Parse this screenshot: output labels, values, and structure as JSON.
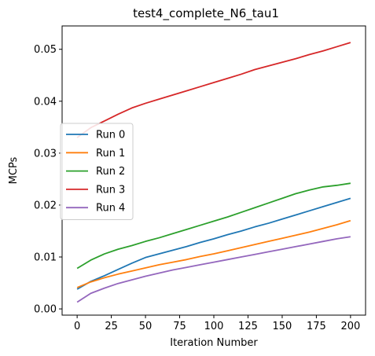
{
  "chart_data": {
    "type": "line",
    "title": "test4_complete_N6_tau1",
    "xlabel": "Iteration Number",
    "ylabel": "MCPs",
    "xlim": [
      -11,
      211
    ],
    "ylim": [
      -0.0012,
      0.0545
    ],
    "xticks": [
      0,
      25,
      50,
      75,
      100,
      125,
      150,
      175,
      200
    ],
    "xtick_labels": [
      "0",
      "25",
      "50",
      "75",
      "100",
      "125",
      "150",
      "175",
      "200"
    ],
    "yticks": [
      0.0,
      0.01,
      0.02,
      0.03,
      0.04,
      0.05
    ],
    "ytick_labels": [
      "0.00",
      "0.01",
      "0.02",
      "0.03",
      "0.04",
      "0.05"
    ],
    "grid": false,
    "legend": {
      "placement": "center-left"
    },
    "series": [
      {
        "name": "Run 0",
        "color": "#1f77b4",
        "x": [
          0,
          10,
          20,
          30,
          40,
          50,
          60,
          70,
          80,
          90,
          100,
          110,
          120,
          130,
          140,
          150,
          160,
          170,
          180,
          190,
          200
        ],
        "y": [
          0.0038,
          0.0053,
          0.0064,
          0.0076,
          0.0088,
          0.0099,
          0.0106,
          0.0113,
          0.012,
          0.0128,
          0.0135,
          0.0143,
          0.015,
          0.0158,
          0.0165,
          0.0173,
          0.0181,
          0.0189,
          0.0197,
          0.0205,
          0.0213
        ]
      },
      {
        "name": "Run 1",
        "color": "#ff7f0e",
        "x": [
          0,
          10,
          20,
          30,
          40,
          50,
          60,
          70,
          80,
          90,
          100,
          110,
          120,
          130,
          140,
          150,
          160,
          170,
          180,
          190,
          200
        ],
        "y": [
          0.0041,
          0.0052,
          0.006,
          0.0067,
          0.0073,
          0.0079,
          0.0085,
          0.009,
          0.0095,
          0.0101,
          0.0106,
          0.0112,
          0.0118,
          0.0124,
          0.013,
          0.0136,
          0.0142,
          0.0148,
          0.0155,
          0.0162,
          0.017
        ]
      },
      {
        "name": "Run 2",
        "color": "#2ca02c",
        "x": [
          0,
          10,
          20,
          30,
          40,
          50,
          60,
          70,
          80,
          90,
          100,
          110,
          120,
          130,
          140,
          150,
          160,
          170,
          180,
          190,
          200
        ],
        "y": [
          0.0078,
          0.0094,
          0.0106,
          0.0115,
          0.0122,
          0.013,
          0.0137,
          0.0145,
          0.0153,
          0.0161,
          0.0169,
          0.0177,
          0.0186,
          0.0195,
          0.0204,
          0.0213,
          0.0222,
          0.0229,
          0.0235,
          0.0238,
          0.0242
        ]
      },
      {
        "name": "Run 3",
        "color": "#d62728",
        "x": [
          0,
          10,
          20,
          30,
          40,
          50,
          60,
          70,
          80,
          90,
          100,
          110,
          120,
          130,
          140,
          150,
          160,
          170,
          180,
          190,
          200
        ],
        "y": [
          0.033,
          0.0349,
          0.0362,
          0.0375,
          0.0387,
          0.0396,
          0.0404,
          0.0412,
          0.042,
          0.0428,
          0.0436,
          0.0444,
          0.0452,
          0.0461,
          0.0468,
          0.0475,
          0.0482,
          0.049,
          0.0497,
          0.0505,
          0.0513
        ]
      },
      {
        "name": "Run 4",
        "color": "#9467bd",
        "x": [
          0,
          10,
          20,
          30,
          40,
          50,
          60,
          70,
          80,
          90,
          100,
          110,
          120,
          130,
          140,
          150,
          160,
          170,
          180,
          190,
          200
        ],
        "y": [
          0.0013,
          0.003,
          0.004,
          0.0049,
          0.0056,
          0.0063,
          0.0069,
          0.0075,
          0.008,
          0.0085,
          0.009,
          0.0095,
          0.01,
          0.0105,
          0.011,
          0.0115,
          0.012,
          0.0125,
          0.013,
          0.0135,
          0.0139
        ]
      }
    ]
  }
}
